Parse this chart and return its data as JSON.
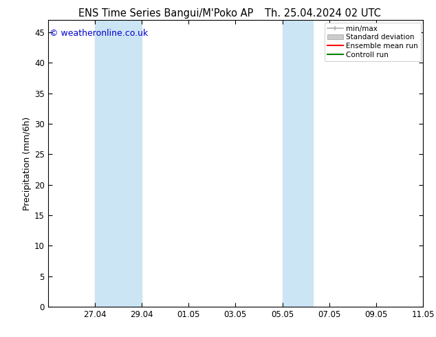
{
  "title_left": "ENS Time Series Bangui/M'Poko AP",
  "title_right": "Th. 25.04.2024 02 UTC",
  "ylabel": "Precipitation (mm/6h)",
  "ylabel_fontsize": 9,
  "title_fontsize": 10.5,
  "copyright_text": "© weatheronline.co.uk",
  "copyright_color": "#0000cc",
  "copyright_fontsize": 9,
  "ylim": [
    0,
    47
  ],
  "yticks": [
    0,
    5,
    10,
    15,
    20,
    25,
    30,
    35,
    40,
    45
  ],
  "bg_color": "#ffffff",
  "plot_bg_color": "#ffffff",
  "shade_color": "#cce5f5",
  "minmax_color": "#aaaaaa",
  "stddev_color": "#cccccc",
  "mean_color": "#ff0000",
  "control_color": "#008000",
  "axis_color": "#000000",
  "axis_linewidth": 0.8,
  "tick_fontsize": 8.5,
  "legend_labels": [
    "min/max",
    "Standard deviation",
    "Ensemble mean run",
    "Controll run"
  ],
  "xtick_labels": [
    "27.04",
    "29.04",
    "01.05",
    "03.05",
    "05.05",
    "07.05",
    "09.05",
    "11.05"
  ]
}
